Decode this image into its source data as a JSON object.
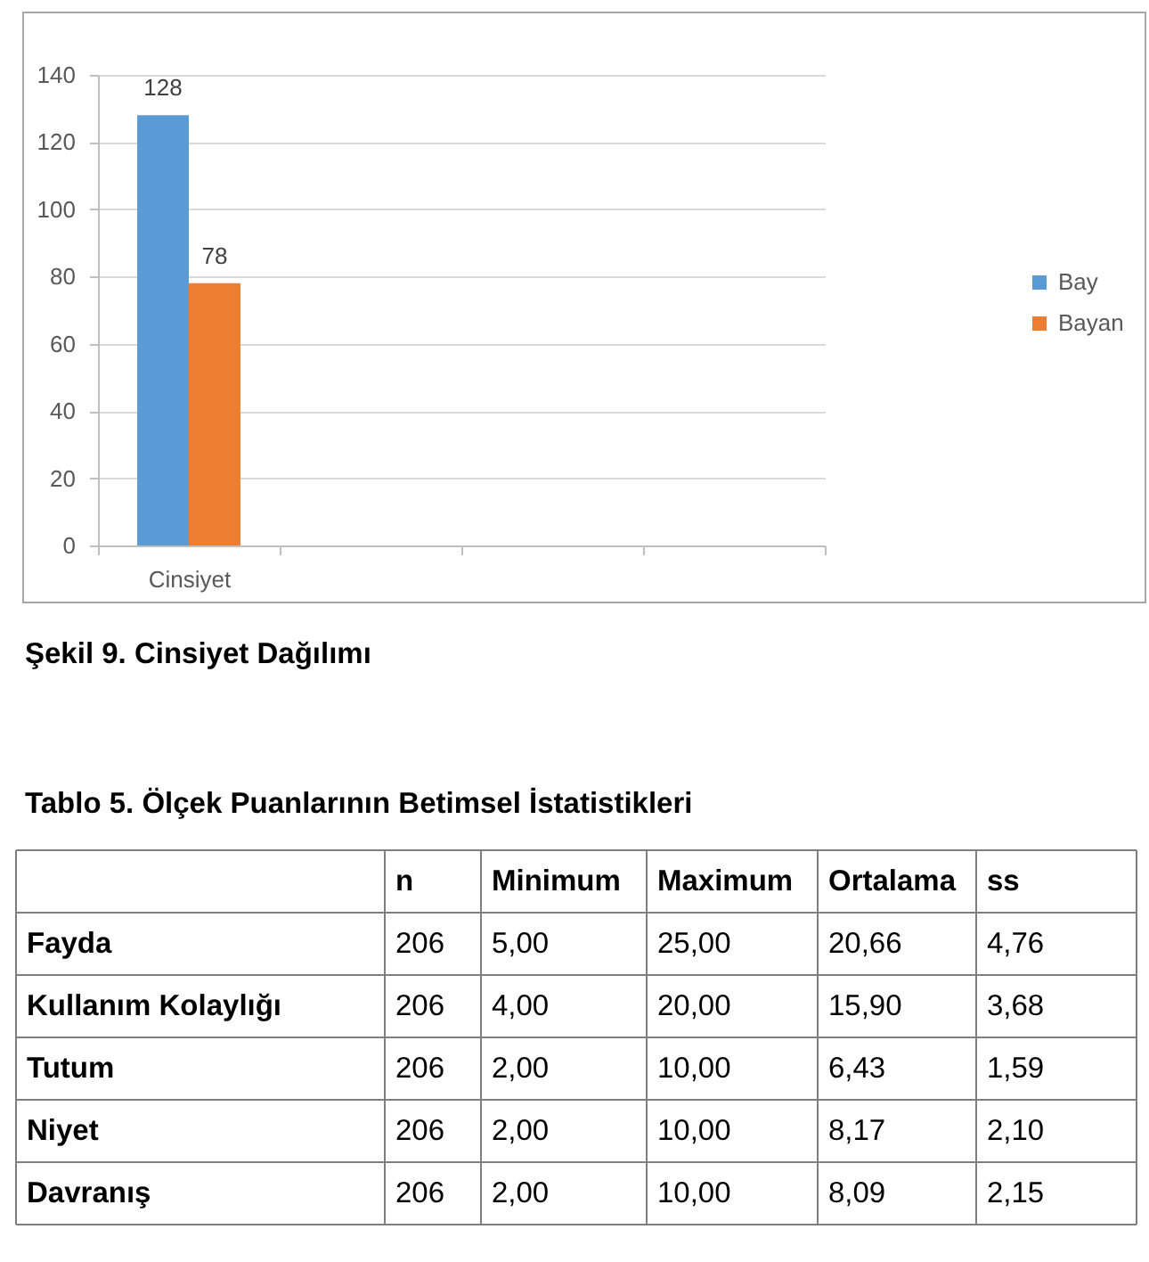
{
  "chart_data": [
    {
      "type": "bar",
      "categories": [
        "Cinsiyet",
        null,
        null,
        null
      ],
      "series": [
        {
          "name": "Bay",
          "color": "#5b9bd5",
          "values": [
            128,
            null,
            null,
            null
          ]
        },
        {
          "name": "Bayan",
          "color": "#ed7d31",
          "values": [
            78,
            null,
            null,
            null
          ]
        }
      ],
      "ylim": [
        0,
        140
      ],
      "yticks": [
        0,
        20,
        40,
        60,
        80,
        100,
        120,
        140
      ],
      "grid": "y",
      "legend": "right",
      "data_labels": true,
      "annotations": [
        "Şekil 9. Cinsiyet Dağılımı"
      ]
    },
    {
      "type": "other",
      "title": "Tablo 5. Ölçek Puanlarının Betimsel İstatistikleri",
      "categories": [
        "n",
        "Minimum",
        "Maximum",
        "Ortalama",
        "ss"
      ],
      "y_categories": [
        "Fayda",
        "Kullanım Kolaylığı",
        "Tutum",
        "Niyet",
        "Davranış"
      ],
      "cell_labels": [
        [
          "206",
          "5,00",
          "25,00",
          "20,66",
          "4,76"
        ],
        [
          "206",
          "4,00",
          "20,00",
          "15,90",
          "3,68"
        ],
        [
          "206",
          "2,00",
          "10,00",
          "6,43",
          "1,59"
        ],
        [
          "206",
          "2,00",
          "10,00",
          "8,17",
          "2,10"
        ],
        [
          "206",
          "2,00",
          "10,00",
          "8,09",
          "2,15"
        ]
      ]
    }
  ]
}
